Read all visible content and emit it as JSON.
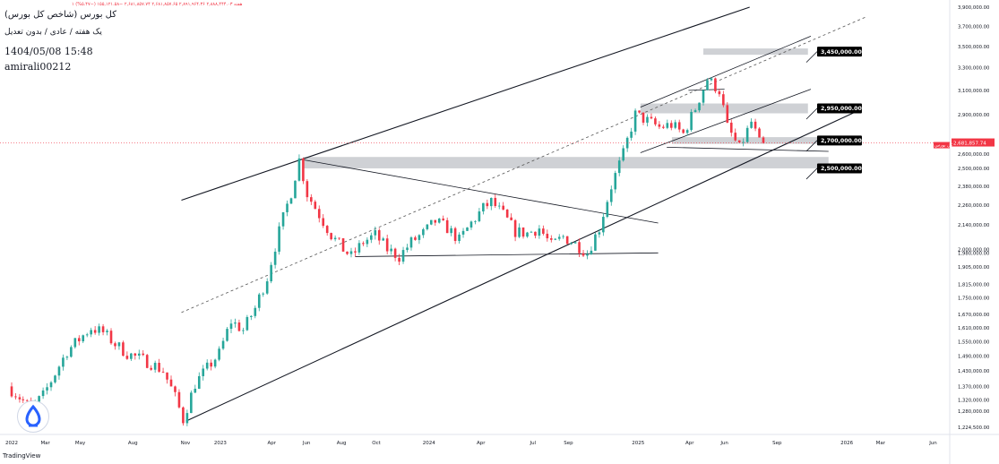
{
  "header": {
    "title": "کل بورس (شاخص کل بورس)",
    "ohlc": "۱ هفته  ۲,۸۸۸,۴۴۴.۰۳  ۲,۸۹۱,۹۶۴.۳۶  ۲,۶۸۱,۸۵۷.۶۵  ۲,۶۸۱,۸۵۷.۷۴  −۱۵۵,۱۲۱.۵۸ (−۵.۴۷%)",
    "subtitle": "یک هفته / عادی / بدون تعدیل",
    "date": "1404/05/08 15:48",
    "user": "amirali00212"
  },
  "branding": {
    "footer_logo": "TradingView"
  },
  "colors": {
    "up": "#26a69a",
    "down": "#f23645",
    "zone": "#c7c9ce",
    "label_bg": "#000000",
    "price_line": "#f23645",
    "price_tag": "#f23645"
  },
  "chart_data": {
    "type": "candlestick",
    "price_scale": "log",
    "ylim": [
      1200000,
      3900000
    ],
    "y_ticks": [
      3900000,
      3700000,
      3500000,
      3300000,
      3100000,
      2900000,
      2600000,
      2500000,
      2380000,
      2260000,
      2140000,
      2000000,
      1980000,
      1905000,
      1815000,
      1750000,
      1670000,
      1610000,
      1550000,
      1490000,
      1430000,
      1370000,
      1320000,
      1280000,
      1224500
    ],
    "y_tick_labels": [
      "3,900,000.00",
      "3,700,000.00",
      "3,500,000.00",
      "3,300,000.00",
      "3,100,000.00",
      "2,900,000.00",
      "2,600,000.00",
      "2,500,000.00",
      "2,380,000.00",
      "2,260,000.00",
      "2,140,000.00",
      "2,000,000.00",
      "1,980,000.00",
      "1,905,000.00",
      "1,815,000.00",
      "1,750,000.00",
      "1,670,000.00",
      "1,610,000.00",
      "1,550,000.00",
      "1,490,000.00",
      "1,430,000.00",
      "1,370,000.00",
      "1,320,000.00",
      "1,280,000.00",
      "1,224,500.00"
    ],
    "x_start": "2022-01-01",
    "x_end": "2026-06-30",
    "x_ticks": [
      {
        "date": "2022-01-01",
        "label": "2022"
      },
      {
        "date": "2022-03-01",
        "label": "Mar"
      },
      {
        "date": "2022-05-01",
        "label": "May"
      },
      {
        "date": "2022-08-01",
        "label": "Aug"
      },
      {
        "date": "2022-11-01",
        "label": "Nov"
      },
      {
        "date": "2023-01-01",
        "label": "2023"
      },
      {
        "date": "2023-04-01",
        "label": "Apr"
      },
      {
        "date": "2023-06-01",
        "label": "Jun"
      },
      {
        "date": "2023-08-01",
        "label": "Aug"
      },
      {
        "date": "2023-10-01",
        "label": "Oct"
      },
      {
        "date": "2024-01-01",
        "label": "2024"
      },
      {
        "date": "2024-04-01",
        "label": "Apr"
      },
      {
        "date": "2024-07-01",
        "label": "Jul"
      },
      {
        "date": "2024-09-01",
        "label": "Sep"
      },
      {
        "date": "2025-01-01",
        "label": "2025"
      },
      {
        "date": "2025-04-01",
        "label": "Apr"
      },
      {
        "date": "2025-06-01",
        "label": "Jun"
      },
      {
        "date": "2025-09-01",
        "label": "Sep"
      },
      {
        "date": "2026-01-01",
        "label": "2026"
      },
      {
        "date": "2026-03-01",
        "label": "Mar"
      },
      {
        "date": "2026-06-01",
        "label": "Jun"
      }
    ],
    "anchors": [
      [
        "2022-01-01",
        1370000
      ],
      [
        "2022-01-21",
        1330000
      ],
      [
        "2022-02-11",
        1290000
      ],
      [
        "2022-03-04",
        1335000
      ],
      [
        "2022-03-25",
        1420000
      ],
      [
        "2022-04-15",
        1510000
      ],
      [
        "2022-05-06",
        1560000
      ],
      [
        "2022-05-27",
        1610000
      ],
      [
        "2022-06-17",
        1590000
      ],
      [
        "2022-07-08",
        1540000
      ],
      [
        "2022-07-29",
        1500000
      ],
      [
        "2022-08-19",
        1480000
      ],
      [
        "2022-09-09",
        1460000
      ],
      [
        "2022-09-30",
        1430000
      ],
      [
        "2022-10-21",
        1330000
      ],
      [
        "2022-11-04",
        1250000
      ],
      [
        "2022-11-25",
        1380000
      ],
      [
        "2022-12-16",
        1440000
      ],
      [
        "2023-01-06",
        1500000
      ],
      [
        "2023-01-27",
        1640000
      ],
      [
        "2023-02-17",
        1600000
      ],
      [
        "2023-03-10",
        1700000
      ],
      [
        "2023-03-31",
        1850000
      ],
      [
        "2023-04-21",
        2100000
      ],
      [
        "2023-05-12",
        2340000
      ],
      [
        "2023-05-26",
        2560000
      ],
      [
        "2023-06-09",
        2330000
      ],
      [
        "2023-06-30",
        2200000
      ],
      [
        "2023-07-21",
        2080000
      ],
      [
        "2023-08-11",
        2000000
      ],
      [
        "2023-08-25",
        1960000
      ],
      [
        "2023-09-15",
        2040000
      ],
      [
        "2023-10-06",
        2080000
      ],
      [
        "2023-10-27",
        2000000
      ],
      [
        "2023-11-17",
        1960000
      ],
      [
        "2023-12-08",
        2040000
      ],
      [
        "2023-12-29",
        2090000
      ],
      [
        "2024-01-19",
        2160000
      ],
      [
        "2024-02-09",
        2120000
      ],
      [
        "2024-03-01",
        2050000
      ],
      [
        "2024-03-22",
        2150000
      ],
      [
        "2024-04-12",
        2240000
      ],
      [
        "2024-04-26",
        2280000
      ],
      [
        "2024-05-17",
        2200000
      ],
      [
        "2024-06-07",
        2100000
      ],
      [
        "2024-06-28",
        2090000
      ],
      [
        "2024-07-19",
        2120000
      ],
      [
        "2024-08-09",
        2020000
      ],
      [
        "2024-08-30",
        2070000
      ],
      [
        "2024-09-20",
        2030000
      ],
      [
        "2024-10-11",
        1980000
      ],
      [
        "2024-11-01",
        2120000
      ],
      [
        "2024-11-22",
        2380000
      ],
      [
        "2024-12-13",
        2600000
      ],
      [
        "2025-01-03",
        2900000
      ],
      [
        "2025-01-24",
        2850000
      ],
      [
        "2025-02-14",
        2800000
      ],
      [
        "2025-03-07",
        2820000
      ],
      [
        "2025-03-28",
        2750000
      ],
      [
        "2025-04-18",
        2950000
      ],
      [
        "2025-05-09",
        3200000
      ],
      [
        "2025-05-30",
        3100000
      ],
      [
        "2025-06-13",
        2800000
      ],
      [
        "2025-07-04",
        2640000
      ],
      [
        "2025-07-25",
        2840000
      ],
      [
        "2025-08-08",
        2680000
      ]
    ],
    "candles": [],
    "series": [
      {
        "type": "zone",
        "y_range": [
          3420000,
          3480000
        ],
        "date_range": [
          "2025-04-25",
          "2025-10-25"
        ]
      },
      {
        "type": "zone",
        "y_range": [
          2910000,
          2990000
        ],
        "date_range": [
          "2025-01-05",
          "2025-10-25"
        ]
      },
      {
        "type": "zone",
        "y_range": [
          2675000,
          2725000
        ],
        "date_range": [
          "2025-03-01",
          "2025-11-30"
        ]
      },
      {
        "type": "zone",
        "y_range": [
          2500000,
          2580000
        ],
        "date_range": [
          "2023-05-26",
          "2025-11-30"
        ]
      }
    ],
    "trendlines": [
      {
        "name": "upper-channel",
        "points": [
          [
            "2022-10-25",
            2290000
          ],
          [
            "2025-07-15",
            3900000
          ]
        ]
      },
      {
        "name": "lower-channel",
        "points": [
          [
            "2022-11-02",
            1245000
          ],
          [
            "2026-01-25",
            2940000
          ]
        ]
      },
      {
        "name": "mid-channel-dashed",
        "style": "dashed",
        "points": [
          [
            "2022-10-25",
            1680000
          ],
          [
            "2026-02-05",
            3800000
          ]
        ]
      },
      {
        "name": "inner-upper",
        "points": [
          [
            "2025-01-05",
            2960000
          ],
          [
            "2025-10-30",
            3600000
          ]
        ]
      },
      {
        "name": "inner-lower",
        "points": [
          [
            "2025-01-05",
            2610000
          ],
          [
            "2025-10-30",
            3110000
          ]
        ]
      },
      {
        "name": "descending",
        "points": [
          [
            "2023-05-26",
            2560000
          ],
          [
            "2025-02-05",
            2150000
          ]
        ]
      },
      {
        "name": "base",
        "points": [
          [
            "2023-08-25",
            1960000
          ],
          [
            "2025-02-05",
            1980000
          ]
        ]
      },
      {
        "name": "small-top",
        "points": [
          [
            "2025-03-30",
            3100000
          ],
          [
            "2025-06-01",
            3110000
          ]
        ]
      },
      {
        "name": "small-bottom",
        "points": [
          [
            "2025-02-20",
            2650000
          ],
          [
            "2025-11-30",
            2620000
          ]
        ]
      }
    ],
    "level_labels": [
      {
        "text": "3,450,000.00",
        "value": 3450000,
        "date": "2025-11-10"
      },
      {
        "text": "2,950,000.00",
        "value": 2950000,
        "date": "2025-11-10"
      },
      {
        "text": "2,700,000.00",
        "value": 2700000,
        "date": "2025-11-10"
      },
      {
        "text": "2,500,000.00",
        "value": 2500000,
        "date": "2025-11-10"
      }
    ],
    "last_price": {
      "value": 2681857.74,
      "label": "2,681,857.74",
      "tag": "کل بورس"
    }
  }
}
